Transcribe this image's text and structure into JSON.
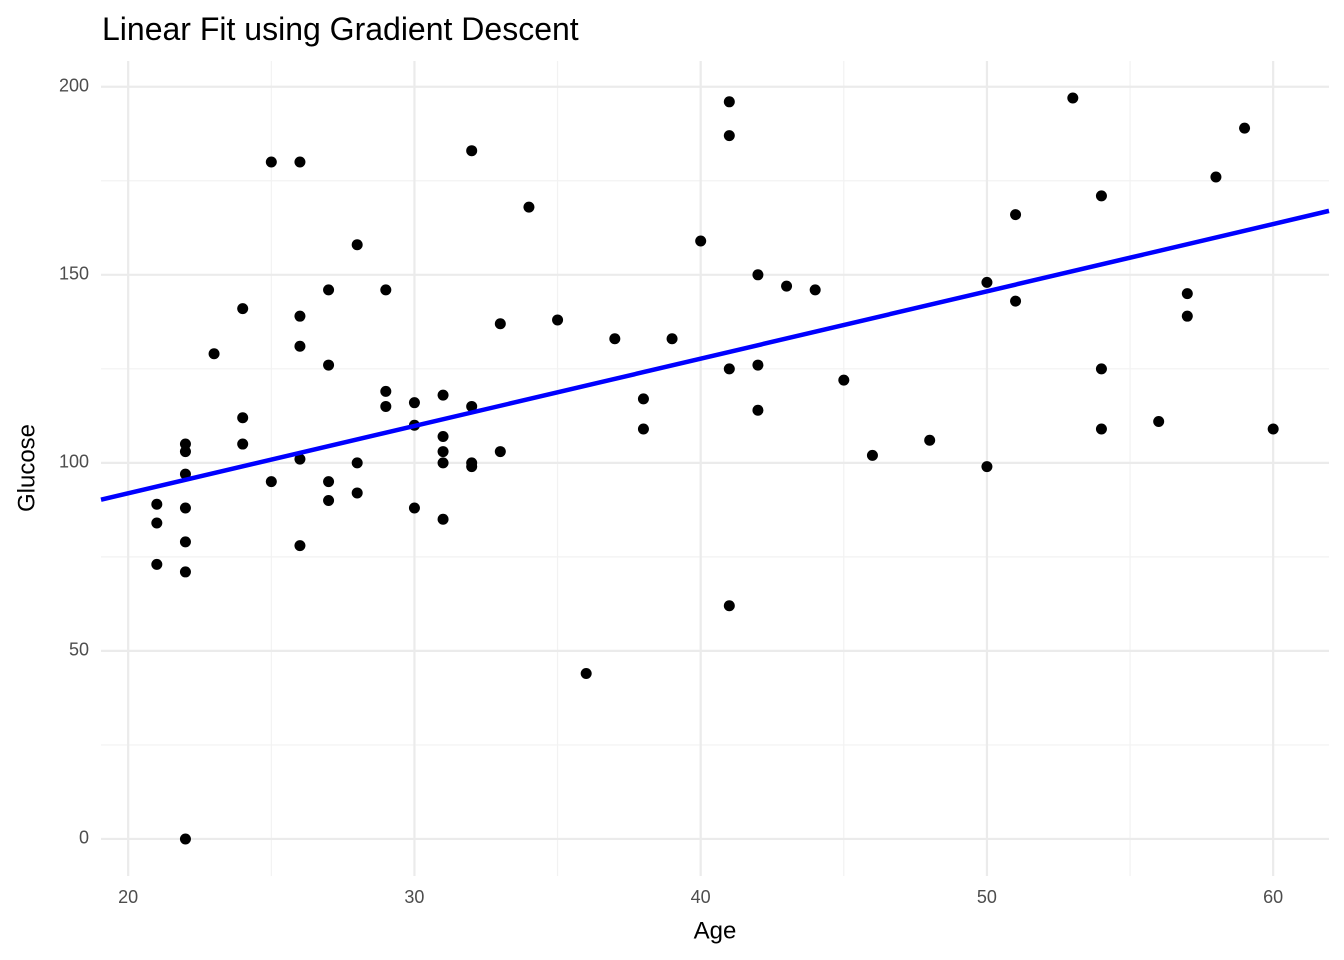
{
  "chart_data": {
    "type": "scatter",
    "title": "Linear Fit using Gradient Descent",
    "x_label": "Age",
    "y_label": "Glucose",
    "x": [
      21,
      21,
      21,
      22,
      22,
      22,
      22,
      22,
      22,
      22,
      23,
      24,
      24,
      24,
      25,
      25,
      26,
      26,
      26,
      26,
      26,
      27,
      27,
      27,
      27,
      28,
      28,
      28,
      29,
      29,
      29,
      30,
      30,
      30,
      31,
      31,
      31,
      31,
      31,
      32,
      32,
      32,
      32,
      33,
      33,
      34,
      35,
      36,
      37,
      38,
      38,
      39,
      40,
      41,
      41,
      41,
      41,
      42,
      42,
      42,
      43,
      44,
      45,
      46,
      48,
      50,
      50,
      51,
      51,
      53,
      54,
      54,
      54,
      56,
      57,
      57,
      58,
      59,
      60
    ],
    "values": [
      89,
      84,
      73,
      105,
      103,
      97,
      88,
      79,
      71,
      0,
      129,
      141,
      112,
      105,
      180,
      95,
      180,
      139,
      131,
      101,
      78,
      146,
      126,
      95,
      90,
      158,
      100,
      92,
      146,
      119,
      115,
      116,
      110,
      88,
      118,
      107,
      103,
      100,
      85,
      183,
      115,
      100,
      99,
      137,
      103,
      168,
      138,
      44,
      133,
      117,
      109,
      133,
      159,
      196,
      187,
      125,
      62,
      150,
      126,
      114,
      147,
      146,
      122,
      102,
      106,
      148,
      99,
      166,
      143,
      197,
      171,
      125,
      109,
      111,
      145,
      139,
      176,
      189,
      109
    ],
    "color": "#000000",
    "fit_line": {
      "type": "line",
      "x": [
        19.05,
        61.95
      ],
      "values": [
        90.2,
        167.0
      ],
      "color": "#0000ff"
    },
    "xlim": [
      19.05,
      61.95
    ],
    "ylim": [
      -9.85,
      206.85
    ],
    "xticks": [
      20,
      30,
      40,
      50,
      60
    ],
    "yticks": [
      0,
      50,
      100,
      150,
      200
    ],
    "grid": true
  }
}
